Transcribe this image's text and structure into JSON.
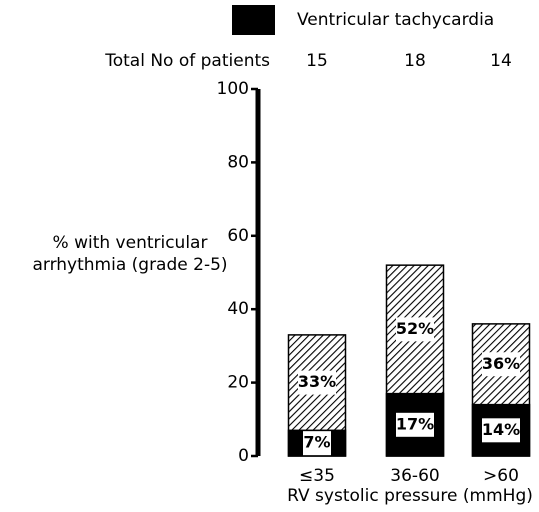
{
  "chart_data": {
    "type": "bar",
    "legend": "top",
    "patients": {
      "label": "Total No of patients",
      "values": [
        15,
        18,
        14
      ]
    },
    "ylabel": [
      "% with ventricular",
      "arrhythmia (grade 2-5)"
    ],
    "xlabel": "RV systolic pressure (mmHg)",
    "categories": [
      "≤35",
      "36-60",
      ">60"
    ],
    "ylim": [
      0,
      100
    ],
    "yticks": [
      0,
      20,
      40,
      60,
      80,
      100
    ],
    "series": [
      {
        "color": "#000000",
        "pattern": "hatch",
        "values": [
          33,
          52,
          36
        ],
        "value_labels": [
          "33%",
          "52%",
          "36%"
        ]
      },
      {
        "name": "Ventricular tachycardia",
        "color": "#000000",
        "values": [
          7,
          17,
          14
        ],
        "value_labels": [
          "7%",
          "17%",
          "14%"
        ]
      }
    ]
  }
}
